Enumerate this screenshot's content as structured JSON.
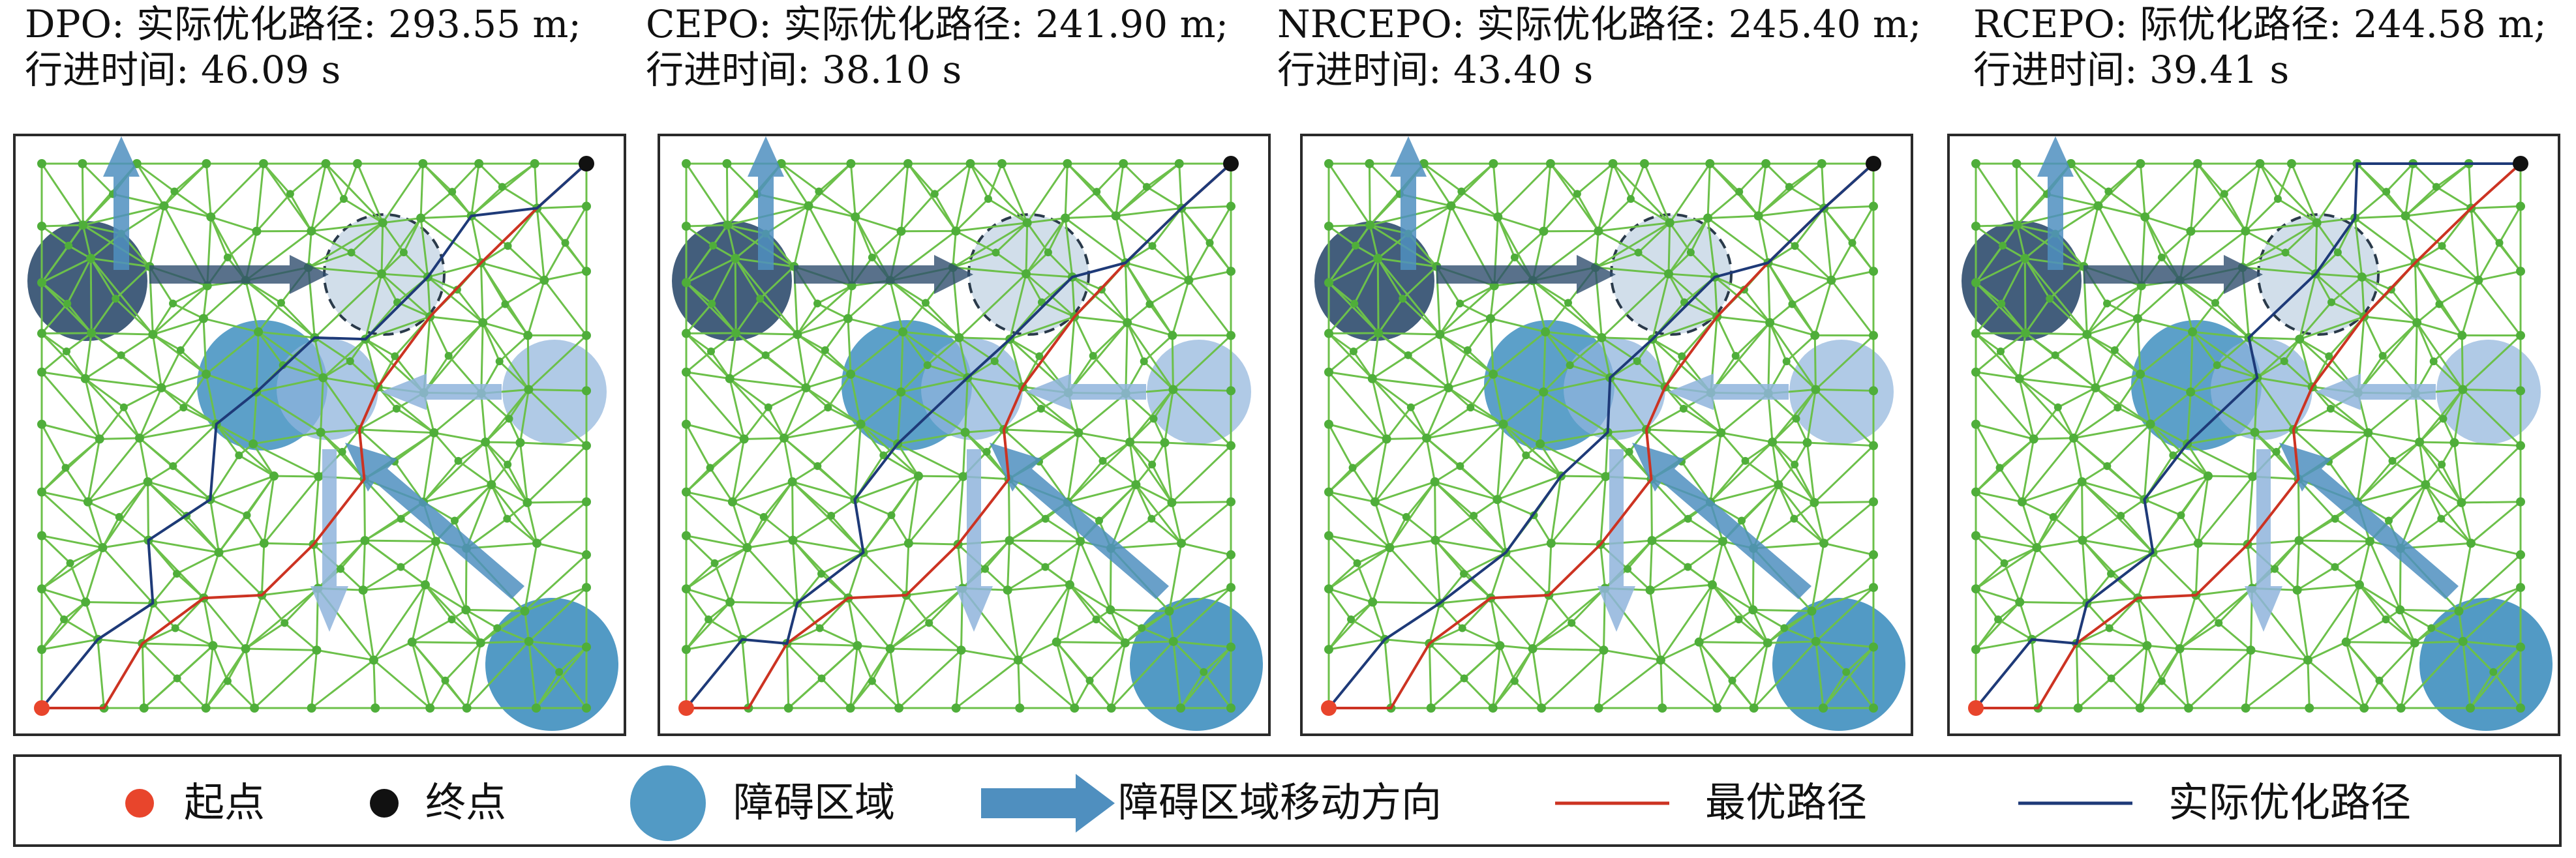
{
  "colors": {
    "mesh": "#6cc04a",
    "node": "#4fae3a",
    "start": "#e8452c",
    "end": "#111111",
    "obstacle": "#3f8fbf",
    "obstacle_dark": "#2f4d6e",
    "obstacle_light": "#8fb4dc",
    "obstacle_faint": "#c9d8e6",
    "arrow": "#4f8fbf",
    "optimal_path": "#cc3322",
    "actual_path": "#1e3a78"
  },
  "panels": [
    {
      "id": "dpo",
      "title_line1": "DPO: 实际优化路径: 293.55 m;",
      "title_line2": "行进时间: 46.09 s"
    },
    {
      "id": "cepo",
      "title_line1": "CEPO: 实际优化路径: 241.90 m;",
      "title_line2": "行进时间: 38.10 s"
    },
    {
      "id": "nrcepo",
      "title_line1": "NRCEPO: 实际优化路径: 245.40 m;",
      "title_line2": "行进时间: 43.40 s"
    },
    {
      "id": "rcepo",
      "title_line1": "RCEPO: 际优化路径: 244.58 m;",
      "title_line2": "行进时间:   39.41 s"
    }
  ],
  "legend": {
    "start": "起点",
    "end": "终点",
    "obstacle": "障碍区域",
    "direction": "障碍区域移动方向",
    "optimal": "最优路径",
    "actual": "实际优化路径"
  },
  "icons": {
    "start": "red-dot-icon",
    "end": "black-dot-icon",
    "obstacle": "blue-circle-icon",
    "direction": "blue-arrow-icon",
    "optimal": "red-line-icon",
    "actual": "navy-line-icon"
  }
}
